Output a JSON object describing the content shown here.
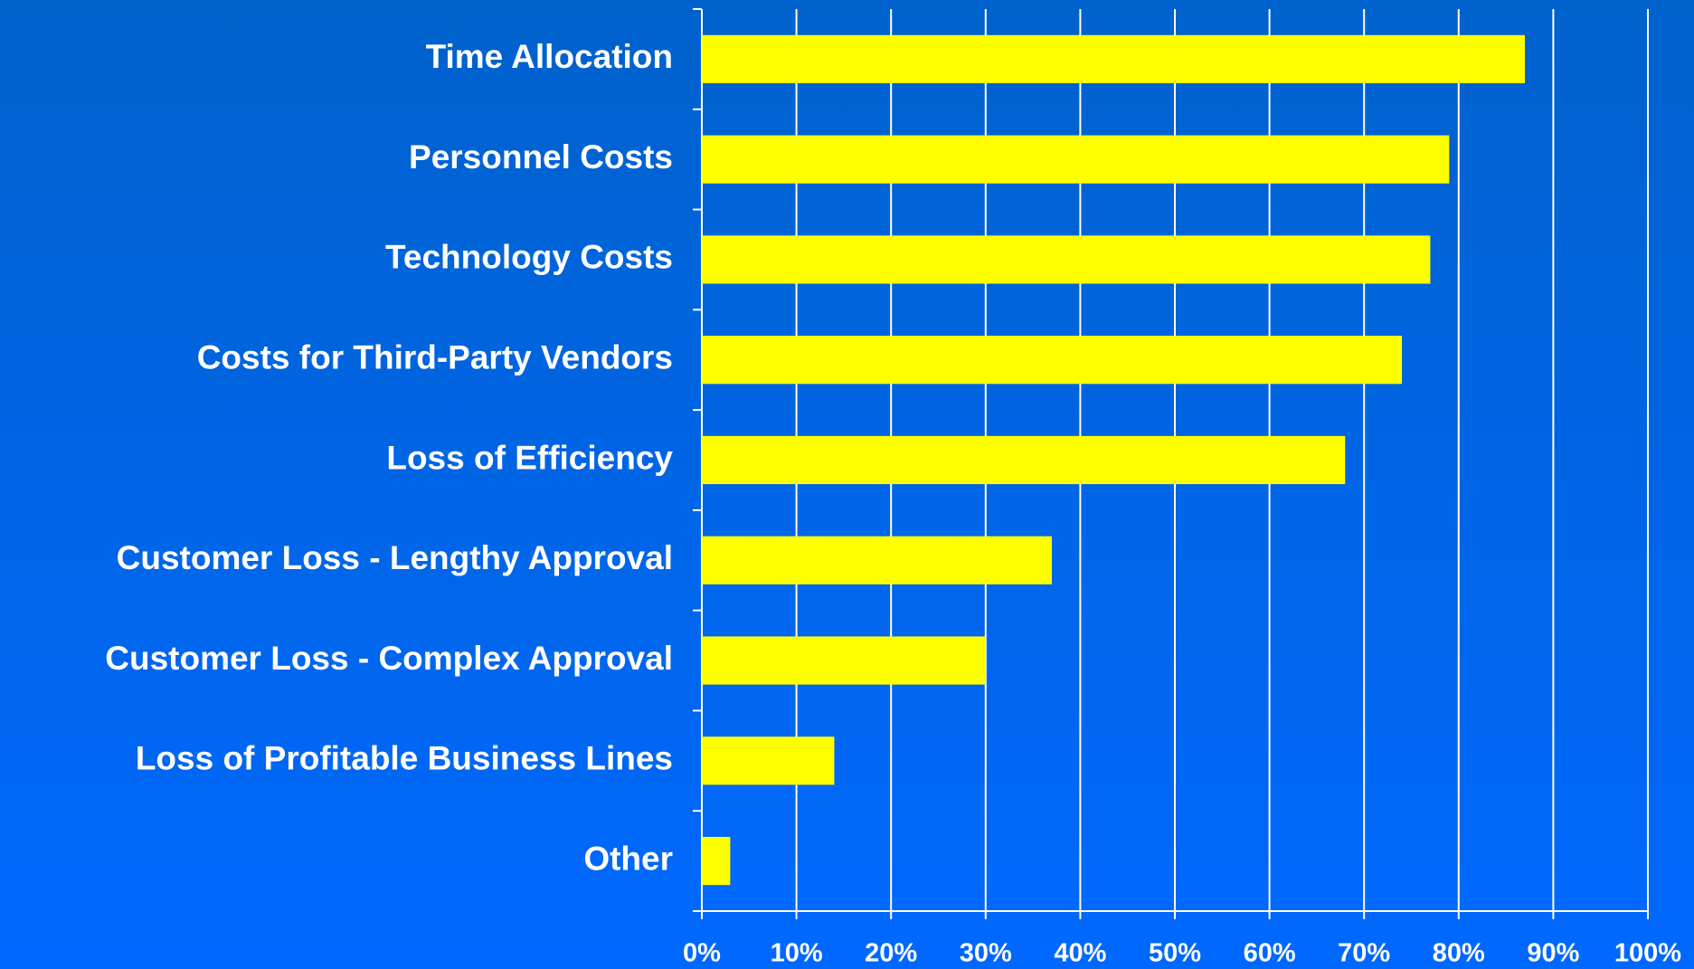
{
  "chart_data": {
    "type": "bar",
    "orientation": "horizontal",
    "categories": [
      "Time Allocation",
      "Personnel Costs",
      "Technology Costs",
      "Costs for Third-Party Vendors",
      "Loss of Efficiency",
      "Customer Loss - Lengthy Approval",
      "Customer Loss - Complex Approval",
      "Loss of Profitable Business Lines",
      "Other"
    ],
    "values": [
      87,
      79,
      77,
      74,
      68,
      37,
      30,
      14,
      3
    ],
    "color": "#ffff00",
    "xlim": [
      0,
      100
    ],
    "xticks": [
      {
        "value": 0,
        "label": "0%"
      },
      {
        "value": 10,
        "label": "10%"
      },
      {
        "value": 20,
        "label": "20%"
      },
      {
        "value": 30,
        "label": "30%"
      },
      {
        "value": 40,
        "label": "40%"
      },
      {
        "value": 50,
        "label": "50%"
      },
      {
        "value": 60,
        "label": "60%"
      },
      {
        "value": 70,
        "label": "70%"
      },
      {
        "value": 80,
        "label": "80%"
      },
      {
        "value": 90,
        "label": "90%"
      },
      {
        "value": 100,
        "label": "100%"
      }
    ],
    "grid": true
  }
}
